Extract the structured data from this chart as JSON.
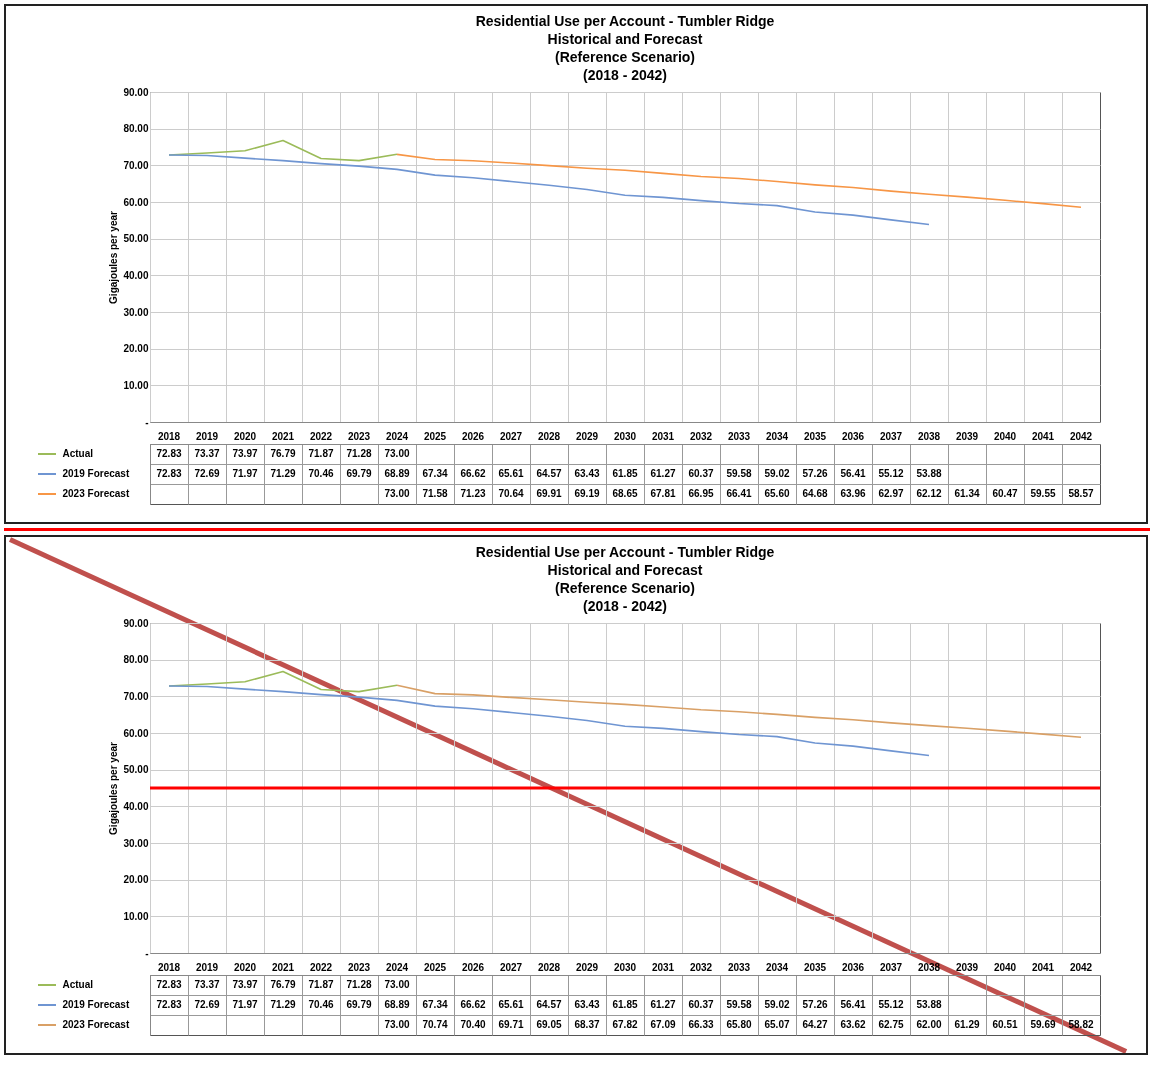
{
  "chart_data": [
    {
      "type": "line",
      "title": "Residential Use per Account - Tumbler Ridge\nHistorical and Forecast\n(Reference Scenario)\n(2018 - 2042)",
      "ylabel": "Gigajoules per year",
      "categories": [
        "2018",
        "2019",
        "2020",
        "2021",
        "2022",
        "2023",
        "2024",
        "2025",
        "2026",
        "2027",
        "2028",
        "2029",
        "2030",
        "2031",
        "2032",
        "2033",
        "2034",
        "2035",
        "2036",
        "2037",
        "2038",
        "2039",
        "2040",
        "2041",
        "2042"
      ],
      "series": [
        {
          "name": "Actual",
          "color": "#9bbb59",
          "values": [
            72.83,
            73.37,
            73.97,
            76.79,
            71.87,
            71.28,
            73.0,
            null,
            null,
            null,
            null,
            null,
            null,
            null,
            null,
            null,
            null,
            null,
            null,
            null,
            null,
            null,
            null,
            null,
            null
          ],
          "value_labels": [
            "72.83",
            "73.37",
            "73.97",
            "76.79",
            "71.87",
            "71.28",
            "73.00",
            null,
            null,
            null,
            null,
            null,
            null,
            null,
            null,
            null,
            null,
            null,
            null,
            null,
            null,
            null,
            null,
            null,
            null
          ]
        },
        {
          "name": "2019 Forecast",
          "color": "#6f95d2",
          "values": [
            72.83,
            72.69,
            71.97,
            71.29,
            70.46,
            69.79,
            68.89,
            67.34,
            66.62,
            65.61,
            64.57,
            63.43,
            61.85,
            61.27,
            60.37,
            59.58,
            59.02,
            57.26,
            56.41,
            55.12,
            53.88,
            null,
            null,
            null,
            null
          ],
          "value_labels": [
            "72.83",
            "72.69",
            "71.97",
            "71.29",
            "70.46",
            "69.79",
            "68.89",
            "67.34",
            "66.62",
            "65.61",
            "64.57",
            "63.43",
            "61.85",
            "61.27",
            "60.37",
            "59.58",
            "59.02",
            "57.26",
            "56.41",
            "55.12",
            "53.88",
            null,
            null,
            null,
            null
          ]
        },
        {
          "name": "2023 Forecast",
          "color": "#f79646",
          "values": [
            null,
            null,
            null,
            null,
            null,
            null,
            73.0,
            71.58,
            71.23,
            70.64,
            69.91,
            69.19,
            68.65,
            67.81,
            66.95,
            66.41,
            65.6,
            64.68,
            63.96,
            62.97,
            62.12,
            61.34,
            60.47,
            59.55,
            58.57
          ],
          "value_labels": [
            null,
            null,
            null,
            null,
            null,
            null,
            "73.00",
            "71.58",
            "71.23",
            "70.64",
            "69.91",
            "69.19",
            "68.65",
            "67.81",
            "66.95",
            "66.41",
            "65.60",
            "64.68",
            "63.96",
            "62.97",
            "62.12",
            "61.34",
            "60.47",
            "59.55",
            "58.57"
          ]
        }
      ],
      "ylim": [
        0,
        90
      ],
      "yticks": [
        {
          "value": 0,
          "label": "-"
        },
        {
          "value": 10,
          "label": "10.00"
        },
        {
          "value": 20,
          "label": "20.00"
        },
        {
          "value": 30,
          "label": "30.00"
        },
        {
          "value": 40,
          "label": "40.00"
        },
        {
          "value": 50,
          "label": "50.00"
        },
        {
          "value": 60,
          "label": "60.00"
        },
        {
          "value": 70,
          "label": "70.00"
        },
        {
          "value": 80,
          "label": "80.00"
        },
        {
          "value": 90,
          "label": "90.00"
        }
      ],
      "grid": true,
      "legend": "bottom left",
      "line_style": "solid"
    },
    {
      "type": "line",
      "title": "Residential Use per Account - Tumbler Ridge\nHistorical and Forecast\n(Reference Scenario)\n(2018 - 2042)",
      "ylabel": "Gigajoules per year",
      "categories": [
        "2018",
        "2019",
        "2020",
        "2021",
        "2022",
        "2023",
        "2024",
        "2025",
        "2026",
        "2027",
        "2028",
        "2029",
        "2030",
        "2031",
        "2032",
        "2033",
        "2034",
        "2035",
        "2036",
        "2037",
        "2038",
        "2039",
        "2040",
        "2041",
        "2042"
      ],
      "series": [
        {
          "name": "Actual",
          "color": "#9bbb59",
          "values": [
            72.83,
            73.37,
            73.97,
            76.79,
            71.87,
            71.28,
            73.0,
            null,
            null,
            null,
            null,
            null,
            null,
            null,
            null,
            null,
            null,
            null,
            null,
            null,
            null,
            null,
            null,
            null,
            null
          ],
          "value_labels": [
            "72.83",
            "73.37",
            "73.97",
            "76.79",
            "71.87",
            "71.28",
            "73.00",
            null,
            null,
            null,
            null,
            null,
            null,
            null,
            null,
            null,
            null,
            null,
            null,
            null,
            null,
            null,
            null,
            null,
            null
          ]
        },
        {
          "name": "2019 Forecast",
          "color": "#6f95d2",
          "values": [
            72.83,
            72.69,
            71.97,
            71.29,
            70.46,
            69.79,
            68.89,
            67.34,
            66.62,
            65.61,
            64.57,
            63.43,
            61.85,
            61.27,
            60.37,
            59.58,
            59.02,
            57.26,
            56.41,
            55.12,
            53.88,
            null,
            null,
            null,
            null
          ],
          "value_labels": [
            "72.83",
            "72.69",
            "71.97",
            "71.29",
            "70.46",
            "69.79",
            "68.89",
            "67.34",
            "66.62",
            "65.61",
            "64.57",
            "63.43",
            "61.85",
            "61.27",
            "60.37",
            "59.58",
            "59.02",
            "57.26",
            "56.41",
            "55.12",
            "53.88",
            null,
            null,
            null,
            null
          ]
        },
        {
          "name": "2023 Forecast",
          "color": "#d9a066",
          "values": [
            null,
            null,
            null,
            null,
            null,
            null,
            73.0,
            70.74,
            70.4,
            69.71,
            69.05,
            68.37,
            67.82,
            67.09,
            66.33,
            65.8,
            65.07,
            64.27,
            63.62,
            62.75,
            62.0,
            61.29,
            60.51,
            59.69,
            58.82
          ],
          "value_labels": [
            null,
            null,
            null,
            null,
            null,
            null,
            "73.00",
            "70.74",
            "70.40",
            "69.71",
            "69.05",
            "68.37",
            "67.82",
            "67.09",
            "66.33",
            "65.80",
            "65.07",
            "64.27",
            "63.62",
            "62.75",
            "62.00",
            "61.29",
            "60.51",
            "59.69",
            "58.82"
          ]
        }
      ],
      "ylim": [
        0,
        90
      ],
      "yticks": [
        {
          "value": 0,
          "label": "-"
        },
        {
          "value": 10,
          "label": "10.00"
        },
        {
          "value": 20,
          "label": "20.00"
        },
        {
          "value": 30,
          "label": "30.00"
        },
        {
          "value": 40,
          "label": "40.00"
        },
        {
          "value": 50,
          "label": "50.00"
        },
        {
          "value": 60,
          "label": "60.00"
        },
        {
          "value": 70,
          "label": "70.00"
        },
        {
          "value": 80,
          "label": "80.00"
        },
        {
          "value": 90,
          "label": "90.00"
        }
      ],
      "ref_lines": [
        {
          "axis": "y",
          "value": 45,
          "color": "#ff0000"
        }
      ],
      "grid": true,
      "legend": "bottom left",
      "line_style": "solid"
    }
  ]
}
